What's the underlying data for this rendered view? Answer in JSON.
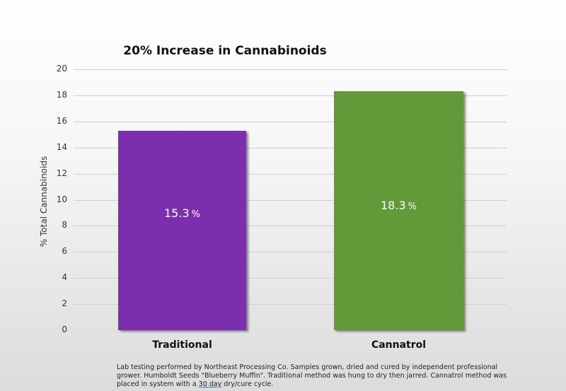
{
  "chart_data": {
    "type": "bar",
    "title": "20% Increase in Cannabinoids",
    "xlabel": "",
    "ylabel": "% Total Cannabinoids",
    "categories": [
      "Traditional",
      "Cannatrol"
    ],
    "values": [
      15.3,
      18.3
    ],
    "data_labels": [
      "15.3",
      "18.3"
    ],
    "data_label_suffix": "%",
    "colors": [
      "#7b2fad",
      "#629a3a"
    ],
    "ylim": [
      0,
      20
    ],
    "yticks": [
      "0",
      "2",
      "4",
      "6",
      "8",
      "10",
      "12",
      "14",
      "16",
      "18",
      "20"
    ],
    "grid": true,
    "legend": null
  },
  "footnote": {
    "part1": "Lab testing performed by Northeast Processing Co.  Samples grown, dried and cured by independent professional grower.  Humboldt Seeds \"Blueberry Muffin\".  Traditional method was hung to dry then jarred. Cannatrol method was placed in system with a ",
    "underlined": "30 day",
    "part2": " dry/cure cycle."
  }
}
